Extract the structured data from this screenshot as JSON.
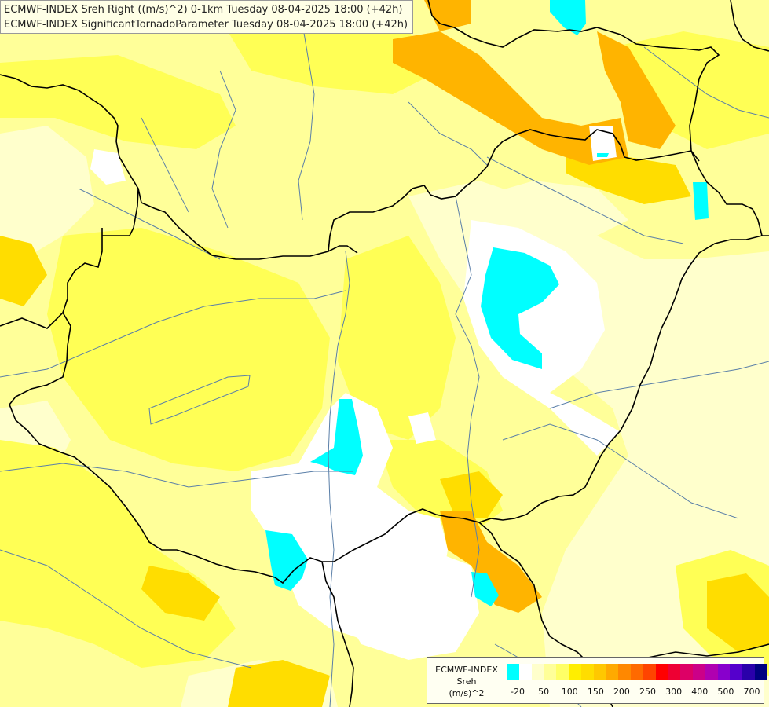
{
  "title": {
    "line1": "ECMWF-INDEX Sreh Right ((m/s)^2) 0-1km Tuesday 08-04-2025 18:00 (+42h)",
    "line2": "ECMWF-INDEX SignificantTornadoParameter Tuesday 08-04-2025 18:00 (+42h)"
  },
  "legend": {
    "source": "ECMWF-INDEX",
    "variable": "Sreh",
    "unit": "(m/s)^2",
    "colors": [
      "#00ffff",
      "#ffffff",
      "#ffffcc",
      "#ffff99",
      "#ffff66",
      "#ffee00",
      "#ffdd00",
      "#ffc800",
      "#ffaa00",
      "#ff8800",
      "#ff6a00",
      "#ff4400",
      "#ff0000",
      "#ee0033",
      "#dd0066",
      "#cc0088",
      "#b000b0",
      "#8800cc",
      "#5500cc",
      "#2a00aa",
      "#000080"
    ],
    "tick_labels": [
      "-20",
      "50",
      "100",
      "150",
      "200",
      "250",
      "300",
      "400",
      "500",
      "700"
    ]
  },
  "colors": {
    "cyan": "#00ffff",
    "white": "#ffffff",
    "light_yellow": "#ffffcc",
    "pale_yellow": "#ffff99",
    "yellow": "#ffff55",
    "gold": "#ffee00",
    "orange_yellow": "#ffcc00",
    "orange": "#ffaa00",
    "border": "#000000",
    "river": "#5a7fa8"
  }
}
